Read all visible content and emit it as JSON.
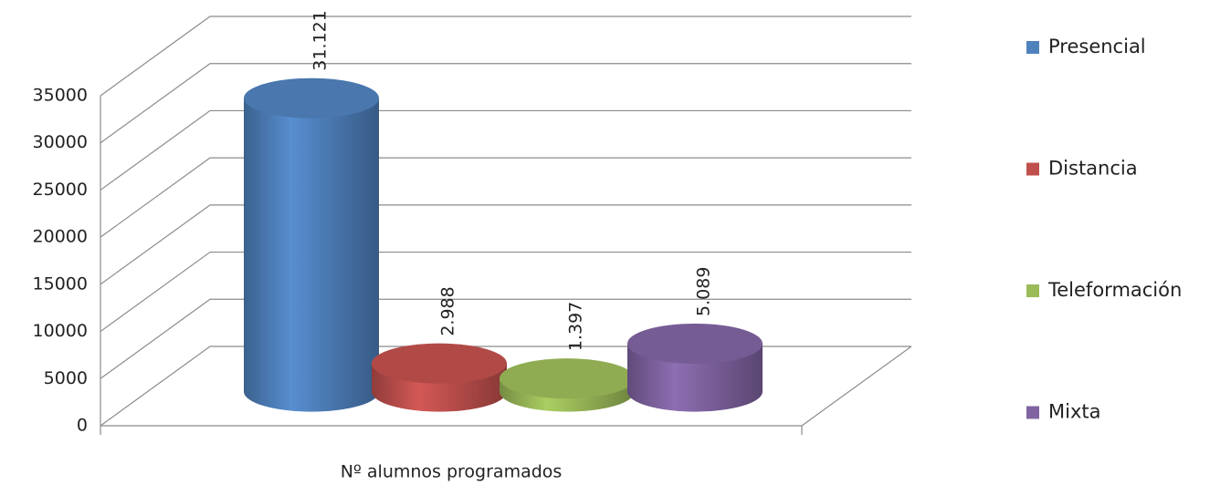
{
  "chart_data": {
    "type": "bar3d",
    "categories": [
      "Nº alumnos programados"
    ],
    "series": [
      {
        "name": "Presencial",
        "color": "#4f81bd",
        "values": [
          31121
        ],
        "value_labels": [
          "31.121"
        ]
      },
      {
        "name": "Distancia",
        "color": "#c0504d",
        "values": [
          2988
        ],
        "value_labels": [
          "2.988"
        ]
      },
      {
        "name": "Teleformación",
        "color": "#9bbb59",
        "values": [
          1397
        ],
        "value_labels": [
          "1.397"
        ]
      },
      {
        "name": "Mixta",
        "color": "#8064a2",
        "values": [
          5089
        ],
        "value_labels": [
          "5.089"
        ]
      }
    ],
    "ylim": [
      0,
      35000
    ],
    "yticks": [
      0,
      5000,
      10000,
      15000,
      20000,
      25000,
      30000,
      35000
    ],
    "grid": true,
    "legend": "right"
  }
}
